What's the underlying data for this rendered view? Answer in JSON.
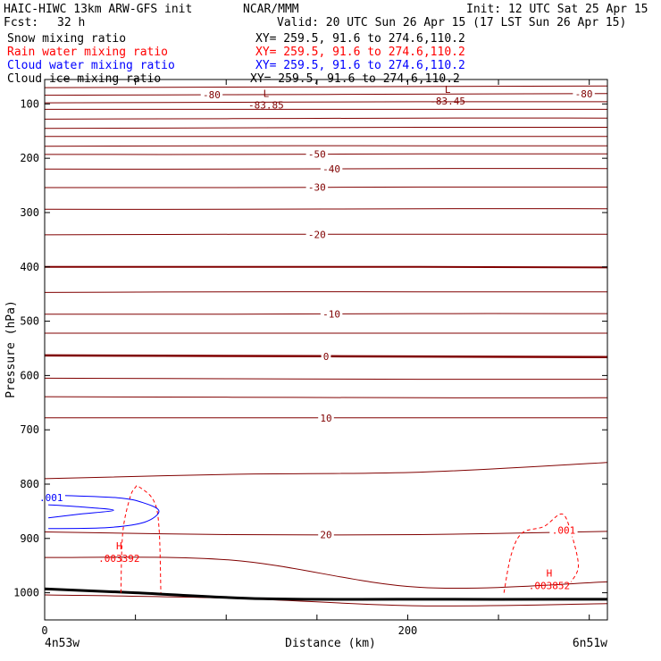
{
  "header": {
    "model": "HAIC-HIWC 13km ARW-GFS init",
    "org": "NCAR/MMM",
    "init": "Init: 12 UTC Sat 25 Apr 15",
    "fcst_label": "Fcst:",
    "fcst_value": "32 h",
    "valid": "Valid: 20 UTC Sun 26 Apr 15 (17 LST Sun 26 Apr 15)"
  },
  "colors": {
    "temperature": "#800000",
    "snow": "#000000",
    "rain": "#ff0000",
    "cloud_water": "#0000ff",
    "cloud_ice": "#000000",
    "terrain": "#000000"
  },
  "chart_data": {
    "type": "contour-cross-section",
    "xlabel": "Distance (km)",
    "ylabel": "Pressure (hPa)",
    "xlim": [
      0,
      310
    ],
    "ylim": [
      1050,
      55
    ],
    "xticks": [
      0,
      200
    ],
    "xticks_minor": [
      0,
      50,
      100,
      150,
      200,
      250,
      300
    ],
    "yticks": [
      100,
      200,
      300,
      400,
      500,
      600,
      700,
      800,
      900,
      1000
    ],
    "left_endpoint": "4n53w",
    "right_endpoint": "6n51w",
    "fields": [
      {
        "name": "Snow mixing ratio",
        "xy": "XY= 259.5, 91.6 to 274.6,110.2",
        "color": "#000000"
      },
      {
        "name": "Rain water mixing ratio",
        "xy": "XY= 259.5, 91.6 to 274.6,110.2",
        "color": "#ff0000"
      },
      {
        "name": "Cloud water mixing ratio",
        "xy": "XY= 259.5, 91.6 to 274.6,110.2",
        "color": "#0000ff"
      },
      {
        "name": "Cloud ice mixing ratio",
        "xy": "XY= 259.5, 91.6 to 274.6,110.2",
        "color": "#000000"
      }
    ],
    "isotherms": [
      {
        "p": [
          70,
          69,
          68,
          67
        ],
        "w": 1
      },
      {
        "p": [
          84,
          83,
          82,
          81
        ],
        "w": 1,
        "label": "-80",
        "label_positions": [
          92,
          297
        ]
      },
      {
        "p": [
          98,
          97,
          96,
          96
        ],
        "w": 1
      },
      {
        "p": [
          110,
          110,
          110,
          110
        ],
        "w": 1
      },
      {
        "p": [
          128,
          127,
          126,
          126
        ],
        "w": 1
      },
      {
        "p": [
          145,
          144,
          143,
          143
        ],
        "w": 1
      },
      {
        "p": [
          160,
          160,
          160,
          160
        ],
        "w": 1
      },
      {
        "p": [
          178,
          177,
          177,
          177
        ],
        "w": 1
      },
      {
        "p": [
          193,
          193,
          192,
          192
        ],
        "w": 1,
        "label": "-50",
        "label_positions": [
          150
        ]
      },
      {
        "p": [
          220,
          220,
          219,
          219
        ],
        "w": 1,
        "label": "-40",
        "label_positions": [
          158
        ]
      },
      {
        "p": [
          254,
          254,
          253,
          253
        ],
        "w": 1,
        "label": "-30",
        "label_positions": [
          150
        ]
      },
      {
        "p": [
          294,
          294,
          293,
          293
        ],
        "w": 1
      },
      {
        "p": [
          341,
          340,
          340,
          340
        ],
        "w": 1,
        "label": "-20",
        "label_positions": [
          150
        ]
      },
      {
        "p": [
          400,
          400,
          400,
          401
        ],
        "w": 2
      },
      {
        "p": [
          447,
          446,
          446,
          446
        ],
        "w": 1
      },
      {
        "p": [
          487,
          487,
          486,
          486
        ],
        "w": 1,
        "label": "-10",
        "label_positions": [
          158
        ]
      },
      {
        "p": [
          522,
          522,
          522,
          522
        ],
        "w": 1
      },
      {
        "p": [
          563,
          564,
          565,
          566
        ],
        "w": 2.5,
        "label": "0",
        "label_positions": [
          155
        ]
      },
      {
        "p": [
          605,
          606,
          607,
          607
        ],
        "w": 1
      },
      {
        "p": [
          639,
          640,
          641,
          641
        ],
        "w": 1
      },
      {
        "p": [
          678,
          678,
          678,
          678
        ],
        "w": 1,
        "label": "10",
        "label_positions": [
          155
        ]
      },
      {
        "p": [
          790,
          782,
          778,
          760
        ],
        "w": 1
      },
      {
        "p": [
          888,
          893,
          893,
          887
        ],
        "w": 1,
        "label": "20",
        "label_positions": [
          155
        ]
      },
      {
        "p": [
          935,
          940,
          990,
          980
        ],
        "w": 1
      },
      {
        "p": [
          1004,
          1010,
          1024,
          1020
        ],
        "w": 1
      }
    ],
    "terrain": {
      "x": [
        0,
        50,
        120,
        200,
        310
      ],
      "p": [
        993,
        1000,
        1011,
        1012,
        1012
      ]
    },
    "pressure_extrema": [
      {
        "type": "L",
        "value": "-83.85",
        "x": 122,
        "p": 87
      },
      {
        "type": "L",
        "value": "-83.45",
        "x": 222,
        "p": 80
      }
    ],
    "rain_contours": [
      {
        "label": ".001",
        "points": [
          [
            42,
            1000
          ],
          [
            43,
            890
          ],
          [
            47,
            825
          ],
          [
            50,
            806
          ],
          [
            52,
            805
          ],
          [
            60,
            830
          ],
          [
            63,
            880
          ],
          [
            64,
            1000
          ]
        ]
      },
      {
        "label": ".001",
        "points": [
          [
            253,
            1000
          ],
          [
            257,
            930
          ],
          [
            263,
            890
          ],
          [
            275,
            878
          ],
          [
            285,
            855
          ],
          [
            290,
            890
          ],
          [
            294,
            950
          ],
          [
            290,
            980
          ]
        ],
        "label_x": 278,
        "label_p": 885
      }
    ],
    "rain_maxima": [
      {
        "type": "H",
        "value": ".003392",
        "x": 41,
        "p": 930
      },
      {
        "type": "H",
        "value": ".003852",
        "x": 278,
        "p": 980
      }
    ],
    "cloud_water_contours": [
      {
        "label": ".001",
        "points": [
          [
            2,
            820
          ],
          [
            40,
            825
          ],
          [
            55,
            835
          ],
          [
            63,
            850
          ],
          [
            55,
            870
          ],
          [
            35,
            880
          ],
          [
            2,
            882
          ]
        ]
      },
      {
        "label": "",
        "points": [
          [
            2,
            838
          ],
          [
            20,
            842
          ],
          [
            38,
            848
          ],
          [
            20,
            855
          ],
          [
            2,
            862
          ]
        ]
      }
    ]
  }
}
